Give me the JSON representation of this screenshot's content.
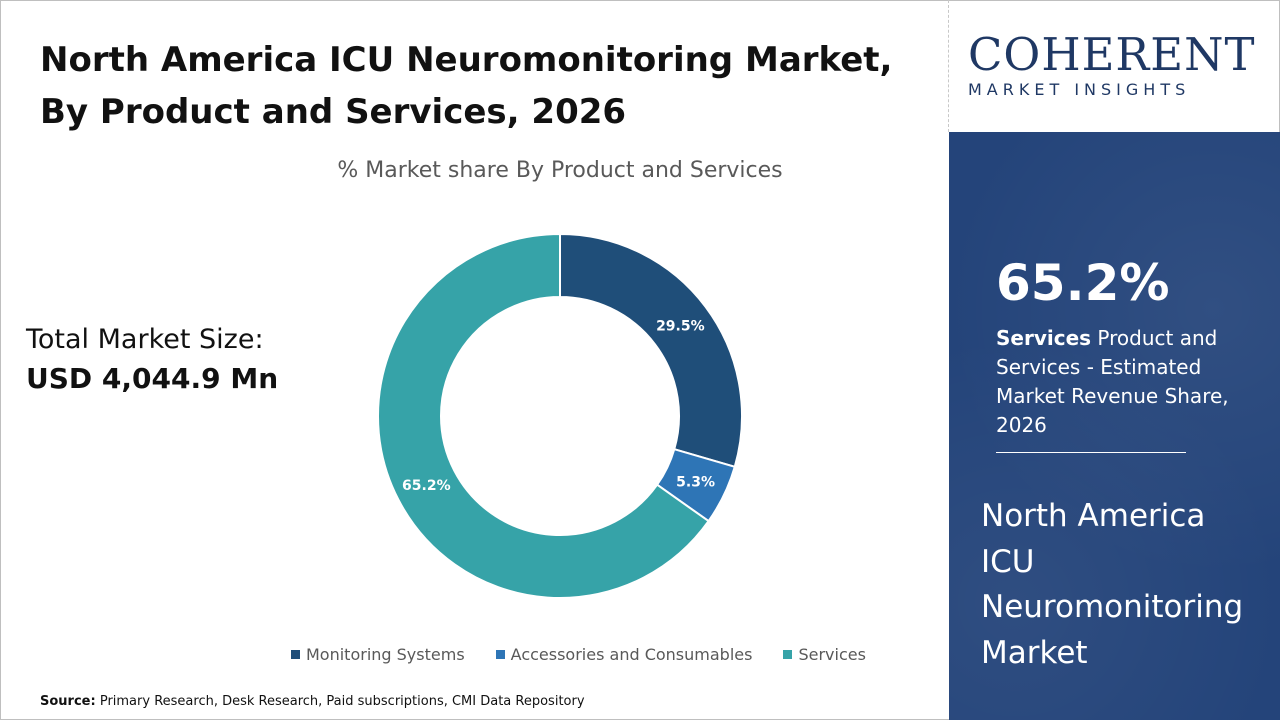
{
  "title": "North America ICU Neuromonitoring Market, By Product and Services, 2026",
  "total_market": {
    "label": "Total Market Size:",
    "value": "USD 4,044.9 Mn"
  },
  "source": {
    "label": "Source:",
    "text": "Primary Research, Desk Research, Paid subscriptions, CMI Data Repository"
  },
  "logo": {
    "main": "COHERENT",
    "sub": "MARKET INSIGHTS"
  },
  "sidebar": {
    "highlight_value": "65.2%",
    "highlight_bold": "Services",
    "highlight_text": "Product and Services - Estimated Market Revenue Share, 2026",
    "market_name": "North America ICU Neuromonitoring Market"
  },
  "colors": {
    "monitoring": "#1f4e79",
    "accessories": "#2e75b6",
    "services": "#36a3a8",
    "sidebar_bg": "#24447a"
  },
  "chart_data": {
    "type": "pie",
    "variant": "donut",
    "title": "% Market share By Product and Services",
    "series": [
      {
        "name": "Monitoring Systems",
        "value": 29.5,
        "label": "29.5%",
        "color": "#1f4e79"
      },
      {
        "name": "Accessories and Consumables",
        "value": 5.3,
        "label": "5.3%",
        "color": "#2e75b6"
      },
      {
        "name": "Services",
        "value": 65.2,
        "label": "65.2%",
        "color": "#36a3a8"
      }
    ],
    "legend_position": "bottom"
  }
}
